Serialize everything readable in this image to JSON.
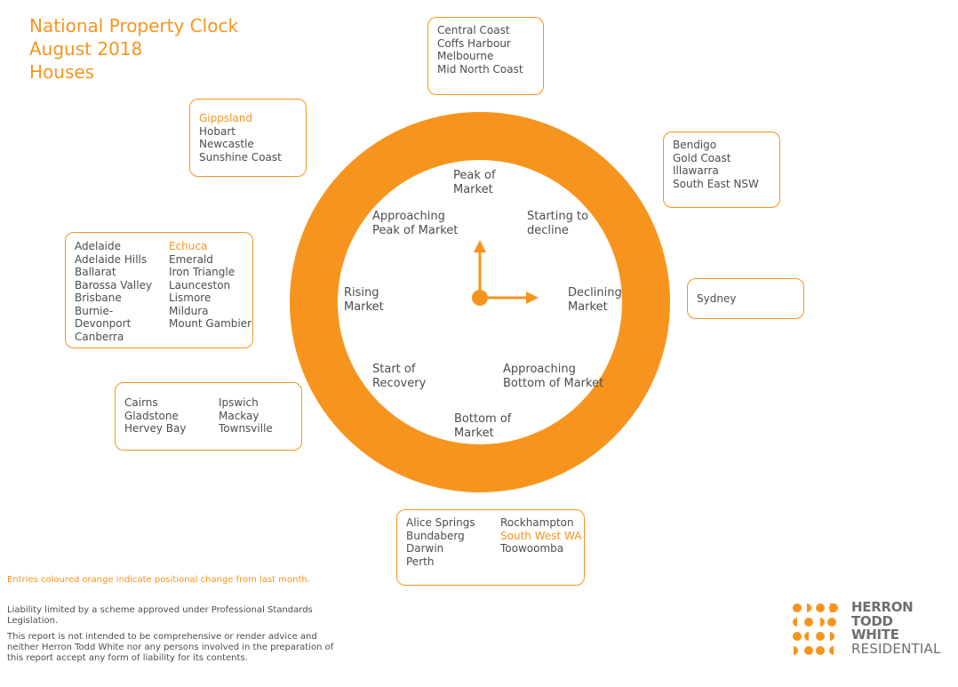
{
  "title": {
    "line1": "National Property Clock",
    "line2": "August 2018",
    "line3": "Houses"
  },
  "phases": {
    "peak": [
      "Peak of",
      "Market"
    ],
    "starting_decline": [
      "Starting to",
      "decline"
    ],
    "declining": [
      "Declining",
      "Market"
    ],
    "approaching_bottom": [
      "Approaching",
      "Bottom of Market"
    ],
    "bottom": [
      "Bottom of",
      "Market"
    ],
    "start_recovery": [
      "Start of",
      "Recovery"
    ],
    "rising": [
      "Rising",
      "Market"
    ],
    "approaching_peak": [
      "Approaching",
      "Peak of Market"
    ]
  },
  "boxes": {
    "peak": [
      "Central Coast",
      "Coffs Harbour",
      "Melbourne",
      "Mid North Coast"
    ],
    "starting_decline": [
      "Bendigo",
      "Gold Coast",
      "Illawarra",
      "South East NSW"
    ],
    "declining": [
      "Sydney"
    ],
    "bottom_col1": [
      "Alice Springs",
      "Bundaberg",
      "Darwin",
      "Perth"
    ],
    "bottom_col2": [
      "Rockhampton",
      "South West WA",
      "Toowoomba"
    ],
    "start_recovery_col1": [
      "Cairns",
      "Gladstone",
      "Hervey Bay"
    ],
    "start_recovery_col2": [
      "Ipswich",
      "Mackay",
      "Townsville"
    ],
    "rising_col1": [
      "Adelaide",
      "Adelaide Hills",
      "Ballarat",
      "Barossa Valley",
      "Brisbane",
      "Burnie-",
      "Devonport",
      "Canberra"
    ],
    "rising_col2": [
      "Echuca",
      "Emerald",
      "Iron Triangle",
      "Launceston",
      "Lismore",
      "Mildura",
      "Mount Gambier"
    ],
    "approaching_peak": [
      "Gippsland",
      "Hobart",
      "Newcastle",
      "Sunshine Coast"
    ]
  },
  "changed_entries": [
    "Gippsland",
    "Echuca",
    "South West WA"
  ],
  "footer": {
    "note": "Entries coloured orange indicate positional change from last month.",
    "liability": "Liability limited by a scheme approved under Professional Standards Legislation.",
    "disclaimer": "This report is not intended to be comprehensive or render advice and neither Herron Todd White nor any persons involved in the preparation of this report accept any form of liability for its contents."
  },
  "logo": {
    "line1": "HERRON",
    "line2": "TODD",
    "line3": "WHITE",
    "line4": "RESIDENTIAL"
  },
  "colors": {
    "accent": "#f7941e",
    "text": "#4d4d4d"
  }
}
